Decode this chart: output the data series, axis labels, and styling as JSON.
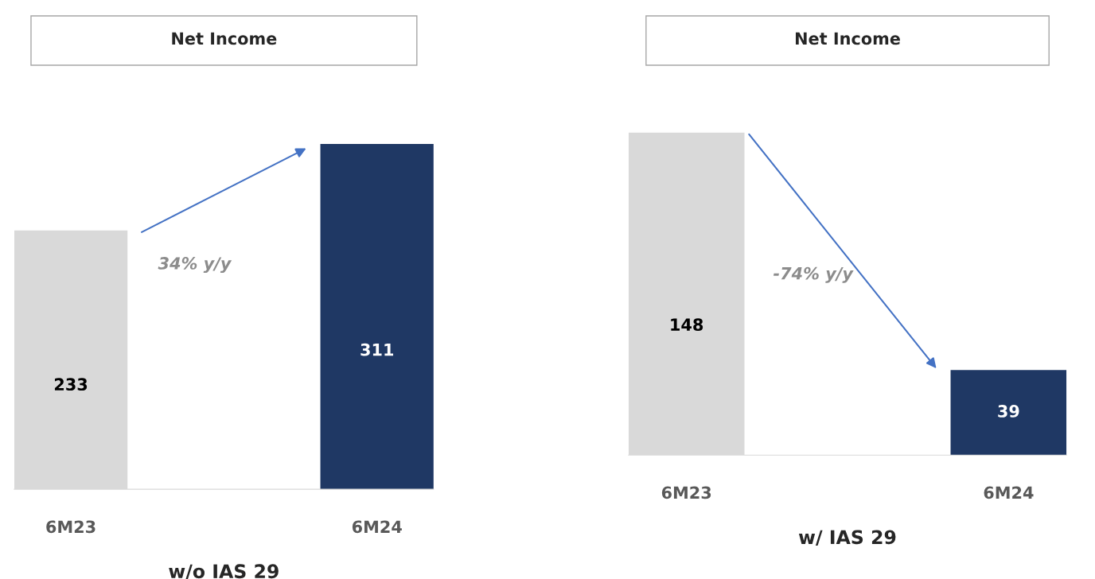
{
  "chart_data": [
    {
      "type": "bar",
      "title": "Net Income",
      "xlabel": "w/o IAS 29",
      "categories": [
        "6M23",
        "6M24"
      ],
      "colors": [
        "#d9d9d9",
        "#1f3864"
      ],
      "values": [
        233,
        311
      ],
      "data_labels": true,
      "annotations": [
        "34% y/y"
      ]
    },
    {
      "type": "bar",
      "title": "Net Income",
      "xlabel": "w/ IAS 29",
      "categories": [
        "6M23",
        "6M24"
      ],
      "colors": [
        "#d9d9d9",
        "#1f3864"
      ],
      "values": [
        148,
        39
      ],
      "data_labels": true,
      "annotations": [
        "-74% y/y"
      ]
    }
  ]
}
